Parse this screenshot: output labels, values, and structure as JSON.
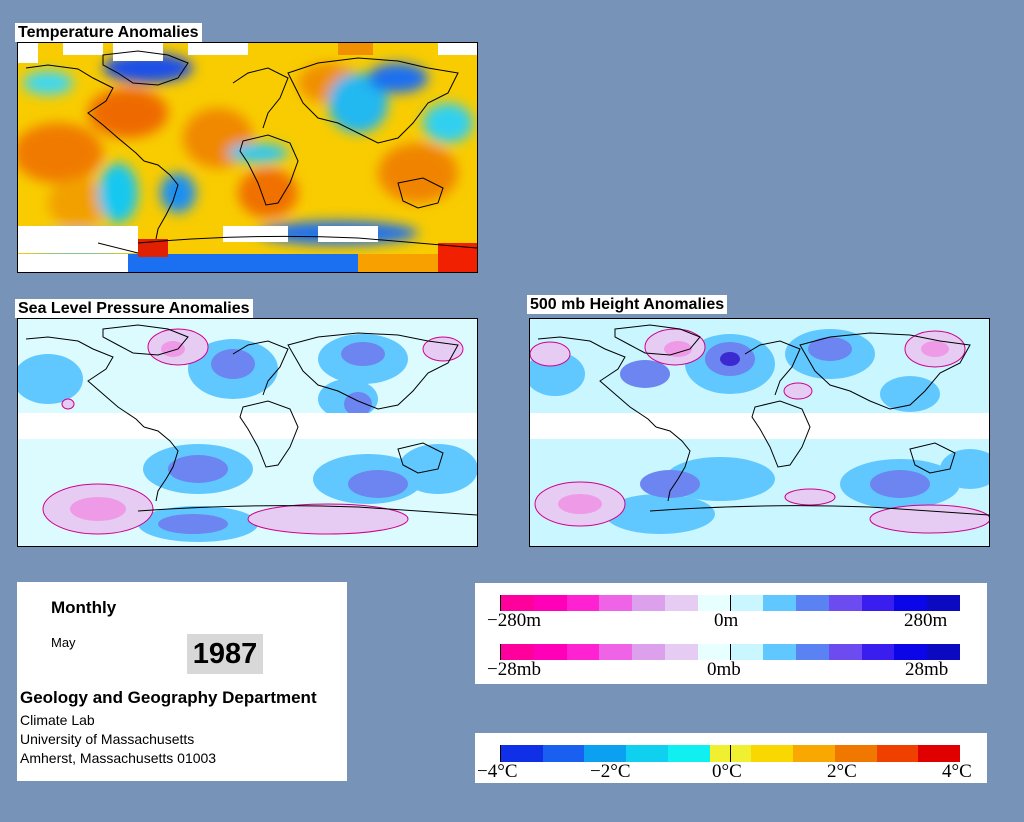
{
  "panels": {
    "temperature": {
      "title": "Temperature Anomalies"
    },
    "slp": {
      "title": "Sea Level Pressure Anomalies"
    },
    "height500": {
      "title": "500 mb Height Anomalies"
    }
  },
  "info": {
    "period": "Monthly",
    "month": "May",
    "year": "1987",
    "department": "Geology and Geography Department",
    "lab": "Climate Lab",
    "university": "University of Massachusetts",
    "address": "Amherst, Massachusetts 01003"
  },
  "legend_anomaly": {
    "colors": [
      "#ff009c",
      "#ff00b8",
      "#ff22d2",
      "#ef63e6",
      "#dda0ec",
      "#e6ccf2",
      "#e8ffff",
      "#c9f6ff",
      "#60c8ff",
      "#5a82f2",
      "#6c4cf0",
      "#3a1ef0",
      "#0a06e8",
      "#0c0ac0"
    ],
    "height_labels": [
      "−280m",
      "0m",
      "280m"
    ],
    "pressure_labels": [
      "−28mb",
      "0mb",
      "28mb"
    ]
  },
  "legend_temperature": {
    "colors": [
      "#1030e8",
      "#1a60f0",
      "#0ca0f0",
      "#10d0f0",
      "#10f0f0",
      "#f0f030",
      "#f8d800",
      "#f8a800",
      "#f07800",
      "#f04000",
      "#e00000"
    ],
    "labels": [
      "−4°C",
      "−2°C",
      "0°C",
      "2°C",
      "4°C"
    ]
  }
}
